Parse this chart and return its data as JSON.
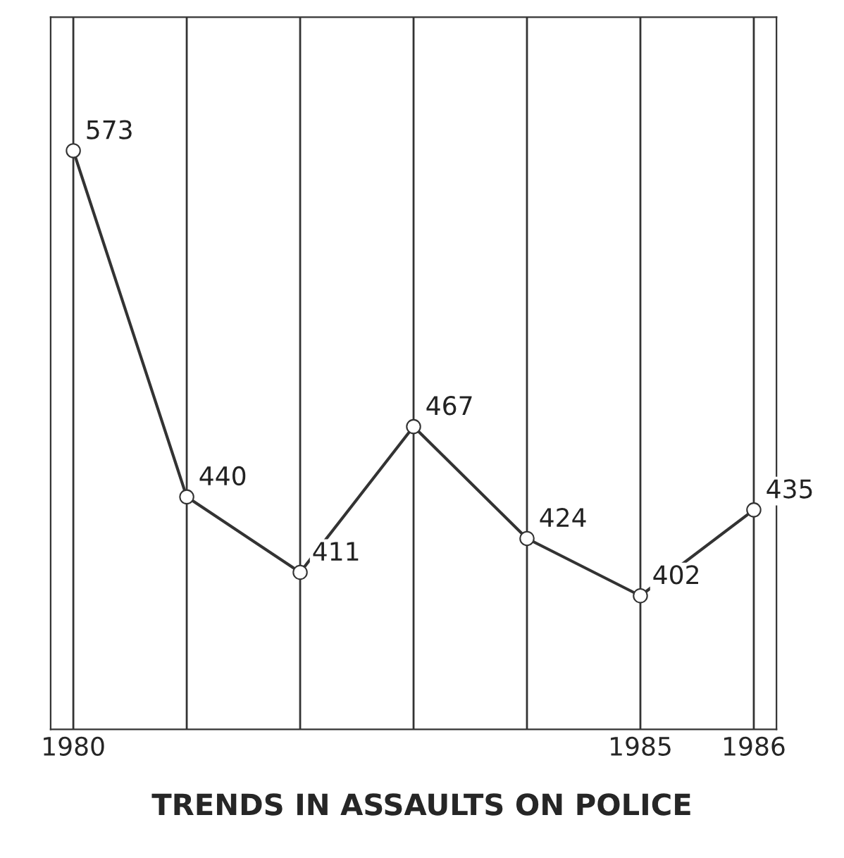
{
  "chart_data": {
    "type": "line",
    "title": "TRENDS IN ASSAULTS ON POLICE",
    "categories": [
      "1980",
      null,
      null,
      null,
      null,
      "1985",
      "1986"
    ],
    "series": [
      {
        "color": "#333333",
        "values": [
          573,
          440,
          411,
          467,
          424,
          402,
          435
        ]
      }
    ],
    "data_labels": true,
    "marker": "circle",
    "line_style": "solid",
    "grid": "x",
    "tick_labels": "x"
  }
}
